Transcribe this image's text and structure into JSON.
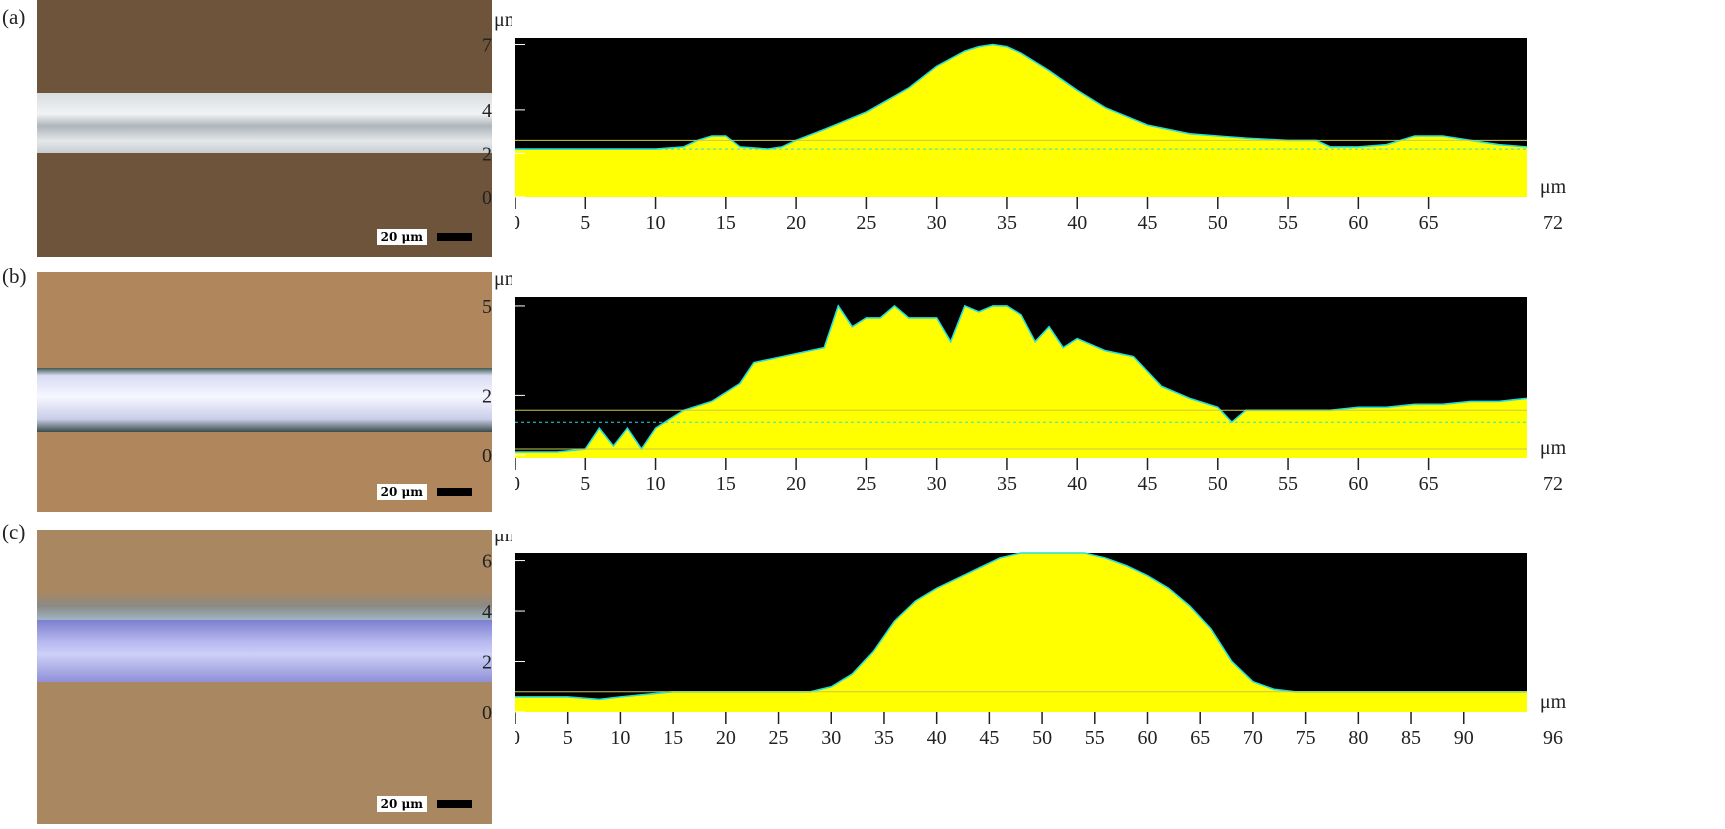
{
  "colors": {
    "plot_bg": "#000000",
    "fill": "#ffff00",
    "outline": "#22e0e0",
    "ref_line": "#c9c94a",
    "text": "#222222"
  },
  "chart_data": [
    {
      "type": "area",
      "panel_label": "(a)",
      "scale_bar": "20 μm",
      "image_tint": "brown substrate with white line",
      "ylabel": "μm",
      "xunit": "μm",
      "xend_label": "72",
      "xlim": [
        0,
        72
      ],
      "ylim": [
        0,
        7.3
      ],
      "xticks": [
        0,
        5,
        10,
        15,
        20,
        25,
        30,
        35,
        40,
        45,
        50,
        55,
        60,
        65
      ],
      "yticks": [
        0,
        2,
        4,
        7
      ],
      "ref_lines": [
        2.6,
        2.2
      ],
      "profile": {
        "x": [
          0,
          5,
          10,
          12,
          13,
          14,
          15,
          16,
          18,
          19,
          20,
          22,
          25,
          28,
          30,
          32,
          33,
          34,
          35,
          36,
          38,
          40,
          42,
          45,
          48,
          50,
          52,
          55,
          57,
          58,
          60,
          62,
          64,
          66,
          68,
          70,
          72
        ],
        "y": [
          2.2,
          2.2,
          2.2,
          2.3,
          2.6,
          2.8,
          2.8,
          2.3,
          2.2,
          2.3,
          2.6,
          3.1,
          3.9,
          5.0,
          6.0,
          6.7,
          6.9,
          7.0,
          6.9,
          6.6,
          5.8,
          4.9,
          4.1,
          3.3,
          2.9,
          2.8,
          2.7,
          2.6,
          2.6,
          2.3,
          2.3,
          2.4,
          2.8,
          2.8,
          2.6,
          2.4,
          2.3
        ]
      }
    },
    {
      "type": "area",
      "panel_label": "(b)",
      "scale_bar": "20 μm",
      "image_tint": "tan substrate with bluish-white line",
      "ylabel": "μm",
      "xunit": "μm",
      "xend_label": "72",
      "xlim": [
        0,
        72
      ],
      "ylim": [
        -0.1,
        5.3
      ],
      "xticks": [
        0,
        5,
        10,
        15,
        20,
        25,
        30,
        35,
        40,
        45,
        50,
        55,
        60,
        65
      ],
      "yticks": [
        0,
        2,
        5
      ],
      "ref_lines": [
        1.5,
        1.1,
        0.2
      ],
      "profile": {
        "x": [
          0,
          3,
          5,
          6,
          7,
          8,
          9,
          10,
          11,
          12,
          14,
          16,
          17,
          18,
          20,
          22,
          23,
          24,
          25,
          26,
          27,
          28,
          29,
          30,
          31,
          32,
          33,
          34,
          35,
          36,
          37,
          38,
          39,
          40,
          42,
          44,
          45,
          46,
          48,
          50,
          51,
          52,
          54,
          56,
          58,
          60,
          62,
          64,
          66,
          68,
          70,
          72
        ],
        "y": [
          0.1,
          0.1,
          0.2,
          0.9,
          0.3,
          0.9,
          0.2,
          0.9,
          1.2,
          1.5,
          1.8,
          2.4,
          3.1,
          3.2,
          3.4,
          3.6,
          5.0,
          4.3,
          4.6,
          4.6,
          5.0,
          4.6,
          4.6,
          4.6,
          3.8,
          5.0,
          4.8,
          5.0,
          5.0,
          4.7,
          3.8,
          4.3,
          3.6,
          3.9,
          3.5,
          3.3,
          2.8,
          2.3,
          1.9,
          1.6,
          1.1,
          1.5,
          1.5,
          1.5,
          1.5,
          1.6,
          1.6,
          1.7,
          1.7,
          1.8,
          1.8,
          1.9
        ]
      }
    },
    {
      "type": "area",
      "panel_label": "(c)",
      "scale_bar": "20 μm",
      "image_tint": "tan substrate with blue-violet line",
      "ylabel": "μm",
      "xunit": "μm",
      "xend_label": "96",
      "xlim": [
        0,
        96
      ],
      "ylim": [
        0,
        6.3
      ],
      "xticks": [
        0,
        5,
        10,
        15,
        20,
        25,
        30,
        35,
        40,
        45,
        50,
        55,
        60,
        65,
        70,
        75,
        80,
        85,
        90
      ],
      "yticks": [
        0,
        2,
        4,
        6
      ],
      "ref_lines": [
        0.8
      ],
      "profile": {
        "x": [
          0,
          5,
          8,
          10,
          15,
          20,
          25,
          28,
          30,
          32,
          34,
          36,
          38,
          40,
          42,
          44,
          46,
          48,
          50,
          52,
          54,
          56,
          58,
          60,
          62,
          64,
          66,
          68,
          70,
          72,
          74,
          76,
          80,
          85,
          90,
          95,
          96
        ],
        "y": [
          0.6,
          0.6,
          0.5,
          0.6,
          0.8,
          0.8,
          0.8,
          0.8,
          1.0,
          1.5,
          2.4,
          3.6,
          4.4,
          4.9,
          5.3,
          5.7,
          6.1,
          6.3,
          6.3,
          6.3,
          6.3,
          6.1,
          5.8,
          5.4,
          4.9,
          4.2,
          3.3,
          2.0,
          1.2,
          0.9,
          0.8,
          0.8,
          0.8,
          0.8,
          0.8,
          0.8,
          0.8
        ]
      }
    }
  ]
}
